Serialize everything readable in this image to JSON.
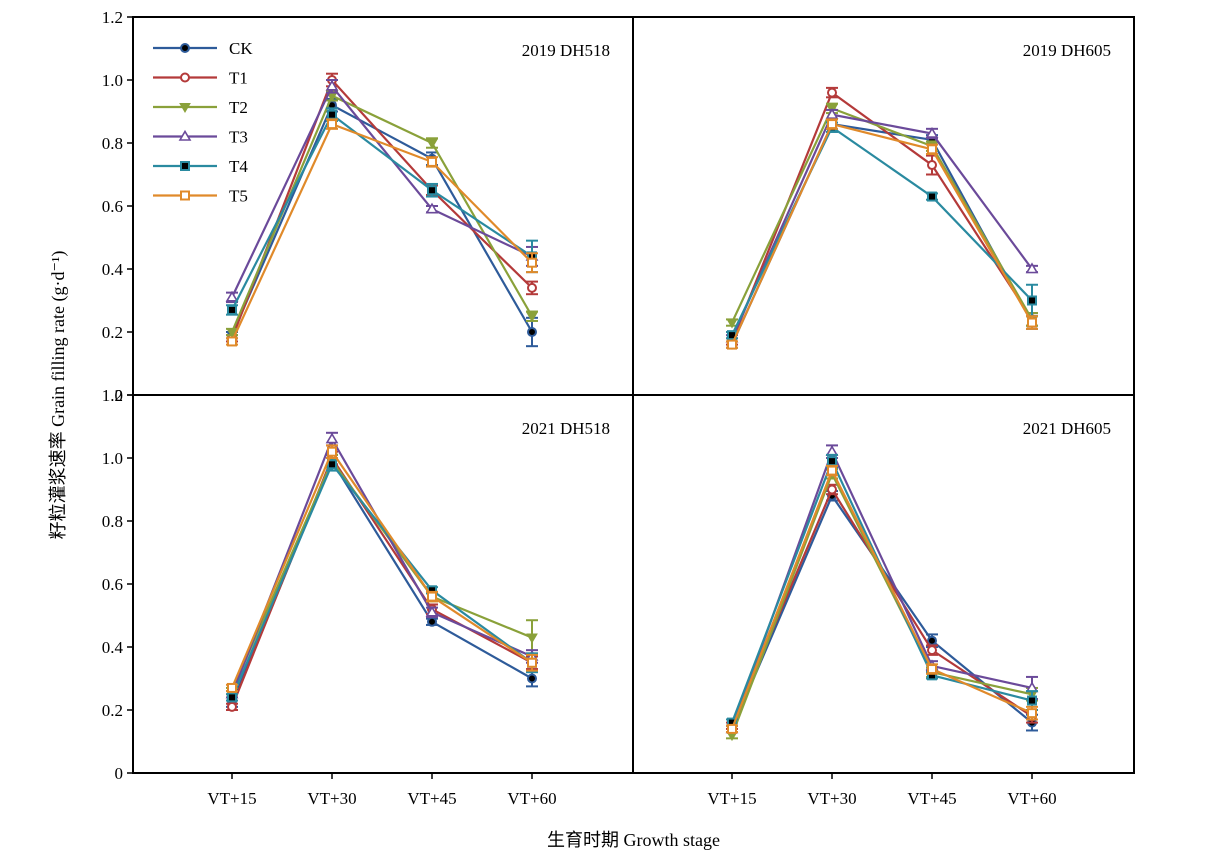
{
  "chart_data": {
    "type": "line",
    "ylabel": "籽粒灌浆速率 Grain filling rate (g·d⁻¹)",
    "xlabel": "生育时期 Growth stage",
    "categories": [
      "VT+15",
      "VT+30",
      "VT+45",
      "VT+60"
    ],
    "ylim": [
      0,
      1.2
    ],
    "yticks": [
      "0",
      "0.2",
      "0.4",
      "0.6",
      "0.8",
      "1.0",
      "1.2"
    ],
    "grid": false,
    "legend": {
      "position": "top-left",
      "panel": 0
    },
    "series_styles": [
      {
        "name": "CK",
        "color": "#2e5b9a",
        "marker": "circle-filled"
      },
      {
        "name": "T1",
        "color": "#b43a3a",
        "marker": "circle-open"
      },
      {
        "name": "T2",
        "color": "#8aa13a",
        "marker": "triangle-down-filled"
      },
      {
        "name": "T3",
        "color": "#6b4a9a",
        "marker": "triangle-up-open"
      },
      {
        "name": "T4",
        "color": "#2a8aa0",
        "marker": "square-filled"
      },
      {
        "name": "T5",
        "color": "#e08a2a",
        "marker": "square-open"
      }
    ],
    "panels": [
      {
        "label": "2019 DH518",
        "series": [
          {
            "name": "CK",
            "values": [
              0.19,
              0.92,
              0.75,
              0.2
            ],
            "errors": [
              0.01,
              0.02,
              0.02,
              0.045
            ]
          },
          {
            "name": "T1",
            "values": [
              0.18,
              1.0,
              0.65,
              0.34
            ],
            "errors": [
              0.01,
              0.02,
              0.015,
              0.02
            ]
          },
          {
            "name": "T2",
            "values": [
              0.2,
              0.95,
              0.8,
              0.25
            ],
            "errors": [
              0.01,
              0.015,
              0.015,
              0.015
            ]
          },
          {
            "name": "T3",
            "values": [
              0.31,
              0.98,
              0.59,
              0.44
            ],
            "errors": [
              0.015,
              0.02,
              0.01,
              0.03
            ]
          },
          {
            "name": "T4",
            "values": [
              0.27,
              0.89,
              0.65,
              0.44
            ],
            "errors": [
              0.015,
              0.02,
              0.02,
              0.05
            ]
          },
          {
            "name": "T5",
            "values": [
              0.17,
              0.86,
              0.74,
              0.42
            ],
            "errors": [
              0.01,
              0.015,
              0.015,
              0.03
            ]
          }
        ]
      },
      {
        "label": "2019 DH605",
        "series": [
          {
            "name": "CK",
            "values": [
              0.16,
              0.86,
              0.81,
              0.23
            ],
            "errors": [
              0.01,
              0.015,
              0.015,
              0.02
            ]
          },
          {
            "name": "T1",
            "values": [
              0.17,
              0.96,
              0.73,
              0.24
            ],
            "errors": [
              0.01,
              0.015,
              0.03,
              0.02
            ]
          },
          {
            "name": "T2",
            "values": [
              0.23,
              0.91,
              0.79,
              0.24
            ],
            "errors": [
              0.01,
              0.015,
              0.015,
              0.02
            ]
          },
          {
            "name": "T3",
            "values": [
              0.18,
              0.89,
              0.83,
              0.4
            ],
            "errors": [
              0.01,
              0.015,
              0.015,
              0.01
            ]
          },
          {
            "name": "T4",
            "values": [
              0.19,
              0.85,
              0.63,
              0.3
            ],
            "errors": [
              0.01,
              0.015,
              0.01,
              0.05
            ]
          },
          {
            "name": "T5",
            "values": [
              0.16,
              0.86,
              0.78,
              0.23
            ],
            "errors": [
              0.01,
              0.015,
              0.015,
              0.02
            ]
          }
        ]
      },
      {
        "label": "2021 DH518",
        "series": [
          {
            "name": "CK",
            "values": [
              0.22,
              0.99,
              0.48,
              0.3
            ],
            "errors": [
              0.01,
              0.02,
              0.01,
              0.025
            ]
          },
          {
            "name": "T1",
            "values": [
              0.21,
              1.0,
              0.52,
              0.35
            ],
            "errors": [
              0.01,
              0.02,
              0.015,
              0.02
            ]
          },
          {
            "name": "T2",
            "values": [
              0.26,
              0.99,
              0.56,
              0.43
            ],
            "errors": [
              0.01,
              0.02,
              0.015,
              0.055
            ]
          },
          {
            "name": "T3",
            "values": [
              0.25,
              1.06,
              0.51,
              0.37
            ],
            "errors": [
              0.01,
              0.02,
              0.015,
              0.02
            ]
          },
          {
            "name": "T4",
            "values": [
              0.24,
              0.98,
              0.58,
              0.35
            ],
            "errors": [
              0.01,
              0.02,
              0.01,
              0.03
            ]
          },
          {
            "name": "T5",
            "values": [
              0.27,
              1.02,
              0.56,
              0.35
            ],
            "errors": [
              0.01,
              0.02,
              0.015,
              0.025
            ]
          }
        ]
      },
      {
        "label": "2021 DH605",
        "series": [
          {
            "name": "CK",
            "values": [
              0.14,
              0.88,
              0.42,
              0.16
            ],
            "errors": [
              0.01,
              0.015,
              0.02,
              0.025
            ]
          },
          {
            "name": "T1",
            "values": [
              0.15,
              0.9,
              0.39,
              0.18
            ],
            "errors": [
              0.01,
              0.015,
              0.015,
              0.02
            ]
          },
          {
            "name": "T2",
            "values": [
              0.12,
              0.95,
              0.32,
              0.25
            ],
            "errors": [
              0.01,
              0.015,
              0.015,
              0.02
            ]
          },
          {
            "name": "T3",
            "values": [
              0.14,
              1.02,
              0.34,
              0.27
            ],
            "errors": [
              0.01,
              0.02,
              0.015,
              0.035
            ]
          },
          {
            "name": "T4",
            "values": [
              0.16,
              0.99,
              0.31,
              0.23
            ],
            "errors": [
              0.01,
              0.02,
              0.01,
              0.03
            ]
          },
          {
            "name": "T5",
            "values": [
              0.14,
              0.96,
              0.33,
              0.19
            ],
            "errors": [
              0.01,
              0.015,
              0.015,
              0.02
            ]
          }
        ]
      }
    ]
  }
}
